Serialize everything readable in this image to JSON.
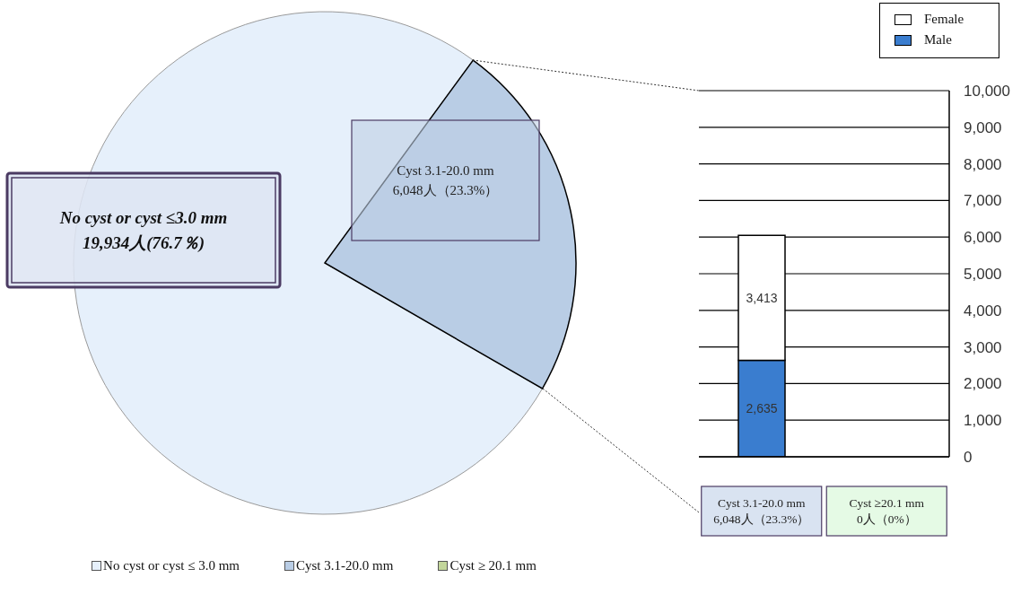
{
  "chart_data": [
    {
      "type": "pie",
      "categories": [
        "No cyst or cyst ≤ 3.0 mm",
        "Cyst 3.1-20.0 mm",
        "Cyst ≥ 20.1 mm"
      ],
      "values": [
        19934,
        6048,
        0
      ],
      "colors": [
        "#e6f0fb",
        "#b9cde5",
        "#c3d69b"
      ],
      "value_labels": [
        "No cyst or cyst ≤3.0 mm\n19,934人(76.7％)",
        "Cyst 3.1-20.0 mm\n6,048人（23.3%）",
        null
      ],
      "legend": "bottom"
    },
    {
      "type": "bar",
      "stacked": true,
      "categories": [
        "Cyst 3.1-20.0 mm\n6,048人（23.3%）",
        "Cyst ≥20.1 mm\n0人（0%）"
      ],
      "series": [
        {
          "name": "Male",
          "color": "#3a7dcf",
          "values": [
            2635,
            0
          ],
          "value_labels": [
            "2,635",
            null
          ]
        },
        {
          "name": "Female",
          "color": "#ffffff",
          "values": [
            3413,
            0
          ],
          "value_labels": [
            "3,413",
            null
          ]
        }
      ],
      "ylim": [
        0,
        10000
      ],
      "yticks": [
        0,
        {
          "value": 1000,
          "label": "1,000"
        },
        {
          "value": 2000,
          "label": "2,000"
        },
        {
          "value": 3000,
          "label": "3,000"
        },
        {
          "value": 4000,
          "label": "4,000"
        },
        {
          "value": 5000,
          "label": "5,000"
        },
        {
          "value": 6000,
          "label": "6,000"
        },
        {
          "value": 7000,
          "label": "7,000"
        },
        {
          "value": 8000,
          "label": "8,000"
        },
        {
          "value": 9000,
          "label": "9,000"
        },
        {
          "value": 10000,
          "label": "10,000"
        }
      ],
      "grid": "y",
      "legend": "top right"
    }
  ]
}
